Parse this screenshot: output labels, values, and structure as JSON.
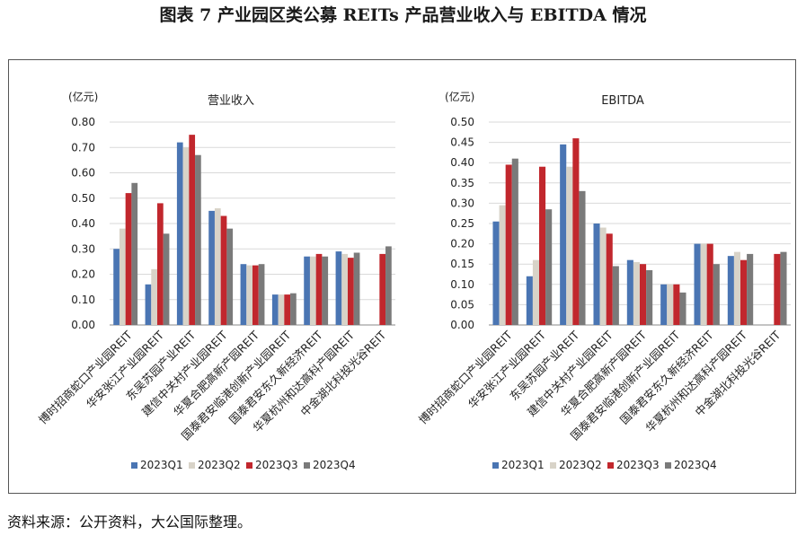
{
  "figure": {
    "title": "图表 7  产业园区类公募 REITs 产品营业收入与 EBITDA 情况",
    "source": "资料来源：公开资料，大公国际整理。"
  },
  "colors": {
    "2023Q1": "#4a75b3",
    "2023Q2": "#d8d3c8",
    "2023Q3": "#c1272d",
    "2023Q4": "#7a7a7a",
    "grid": "#d9d9d9",
    "axis": "#888888"
  },
  "chart_data": [
    {
      "type": "bar",
      "title": "营业收入",
      "unit_label": "(亿元)",
      "ylim": [
        0,
        0.8
      ],
      "yticks": [
        "0.00",
        "0.10",
        "0.20",
        "0.30",
        "0.40",
        "0.50",
        "0.60",
        "0.70",
        "0.80"
      ],
      "grid": true,
      "legend_position": "bottom",
      "categories": [
        "博时招商蛇口产业园REIT",
        "华安张江产业园REIT",
        "东吴苏园产业REIT",
        "建信中关村产业园REIT",
        "华夏合肥高新产园REIT",
        "国泰君安临港创新产业园REIT",
        "国泰君安东久新经济REIT",
        "华夏杭州和达高科产园REIT",
        "中金湖北科投光谷REIT"
      ],
      "series": [
        {
          "name": "2023Q1",
          "values": [
            0.3,
            0.16,
            0.72,
            0.45,
            0.24,
            0.12,
            0.27,
            0.29,
            null
          ]
        },
        {
          "name": "2023Q2",
          "values": [
            0.38,
            0.22,
            0.7,
            0.46,
            0.235,
            0.12,
            0.27,
            0.28,
            null
          ]
        },
        {
          "name": "2023Q3",
          "values": [
            0.52,
            0.48,
            0.75,
            0.43,
            0.235,
            0.12,
            0.28,
            0.265,
            0.28
          ]
        },
        {
          "name": "2023Q4",
          "values": [
            0.56,
            0.36,
            0.67,
            0.38,
            0.24,
            0.125,
            0.27,
            0.285,
            0.31
          ]
        }
      ]
    },
    {
      "type": "bar",
      "title": "EBITDA",
      "unit_label": "(亿元)",
      "ylim": [
        0,
        0.5
      ],
      "yticks": [
        "0.00",
        "0.05",
        "0.10",
        "0.15",
        "0.20",
        "0.25",
        "0.30",
        "0.35",
        "0.40",
        "0.45",
        "0.50"
      ],
      "grid": true,
      "legend_position": "bottom",
      "categories": [
        "博时招商蛇口产业园REIT",
        "华安张江产业园REIT",
        "东吴苏园产业REIT",
        "建信中关村产业园REIT",
        "华夏合肥高新产园REIT",
        "国泰君安临港创新产业园REIT",
        "国泰君安东久新经济REIT",
        "华夏杭州和达高科产园REIT",
        "中金湖北科投光谷REIT"
      ],
      "series": [
        {
          "name": "2023Q1",
          "values": [
            0.255,
            0.12,
            0.445,
            0.25,
            0.16,
            0.1,
            0.2,
            0.17,
            null
          ]
        },
        {
          "name": "2023Q2",
          "values": [
            0.295,
            0.16,
            0.39,
            0.24,
            0.155,
            0.1,
            0.2,
            0.18,
            null
          ]
        },
        {
          "name": "2023Q3",
          "values": [
            0.395,
            0.39,
            0.46,
            0.225,
            0.15,
            0.1,
            0.2,
            0.16,
            0.175
          ]
        },
        {
          "name": "2023Q4",
          "values": [
            0.41,
            0.285,
            0.33,
            0.145,
            0.135,
            0.08,
            0.15,
            0.175,
            0.18
          ]
        }
      ]
    }
  ]
}
